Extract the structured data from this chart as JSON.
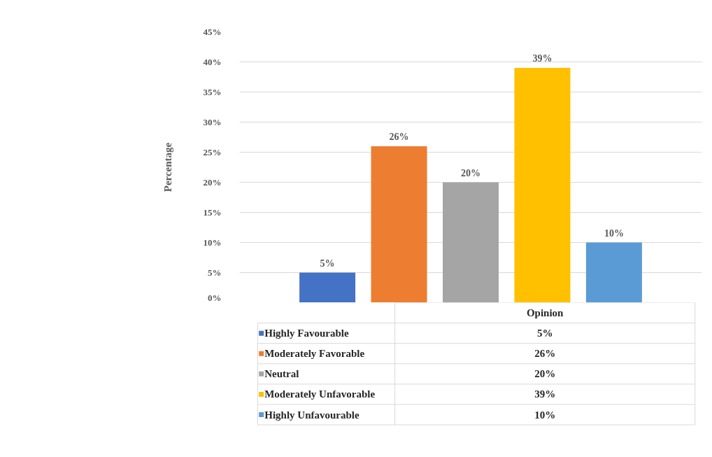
{
  "chart_data": {
    "type": "bar",
    "categories": [
      "Opinion"
    ],
    "ylabel": "Percentage",
    "series": [
      {
        "name": "Highly Favourable",
        "color": "#4472c4",
        "values": [
          5
        ],
        "value_labels": [
          "5%"
        ]
      },
      {
        "name": "Moderately Favorable",
        "color": "#ed7d31",
        "values": [
          26
        ],
        "value_labels": [
          "26%"
        ]
      },
      {
        "name": "Neutral",
        "color": "#a5a5a5",
        "values": [
          20
        ],
        "value_labels": [
          "20%"
        ]
      },
      {
        "name": "Moderately Unfavorable",
        "color": "#ffc000",
        "values": [
          39
        ],
        "value_labels": [
          "39%"
        ]
      },
      {
        "name": "Highly Unfavourable",
        "color": "#5b9bd5",
        "values": [
          10
        ],
        "value_labels": [
          "10%"
        ]
      }
    ],
    "ylim": [
      0,
      45
    ],
    "yticks": [
      {
        "value": 0,
        "label": "0%"
      },
      {
        "value": 5,
        "label": "5%"
      },
      {
        "value": 10,
        "label": "10%"
      },
      {
        "value": 15,
        "label": "15%"
      },
      {
        "value": 20,
        "label": "20%"
      },
      {
        "value": 25,
        "label": "25%"
      },
      {
        "value": 30,
        "label": "30%"
      },
      {
        "value": 35,
        "label": "35%"
      },
      {
        "value": 40,
        "label": "40%"
      },
      {
        "value": 45,
        "label": "45%"
      }
    ],
    "grid": "y",
    "legend": "bottom"
  }
}
